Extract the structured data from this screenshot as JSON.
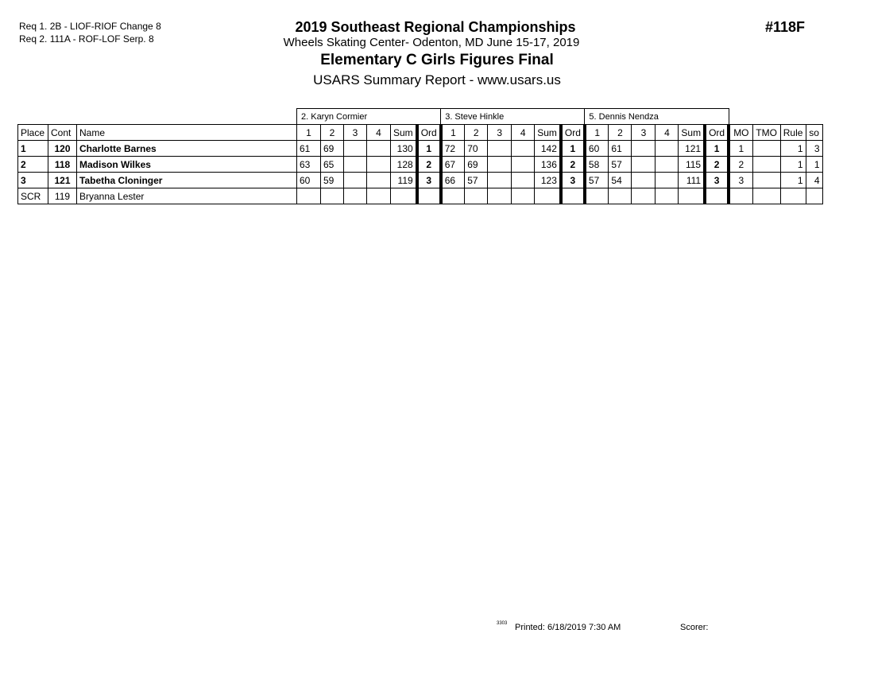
{
  "requirements": [
    "Req  1.  2B - LIOF-RIOF Change 8",
    "Req  2.  111A - ROF-LOF Serp. 8"
  ],
  "event_number": "#118F",
  "title": "2019 Southeast Regional Championships",
  "venue": "Wheels Skating Center- Odenton, MD  June 15-17, 2019",
  "event_name": "Elementary C Girls Figures Final",
  "report": "USARS Summary Report - www.usars.us",
  "judges": [
    "2.  Karyn Cormier",
    "3.  Steve Hinkle",
    "5.  Dennis Nendza"
  ],
  "columns": {
    "place": "Place",
    "cont": "Cont",
    "name": "Name",
    "judge_cols": [
      "1",
      "2",
      "3",
      "4",
      "Sum",
      "Ord"
    ],
    "mo": "MO",
    "tmo": "TMO",
    "rule": "Rule",
    "so": "so"
  },
  "rows": [
    {
      "place": "1",
      "cont": "120",
      "name": "Charlotte Barnes",
      "bold": true,
      "judges": [
        [
          "61",
          "69",
          "",
          "",
          "130",
          "1"
        ],
        [
          "72",
          "70",
          "",
          "",
          "142",
          "1"
        ],
        [
          "60",
          "61",
          "",
          "",
          "121",
          "1"
        ]
      ],
      "mo": "1",
      "tmo": "",
      "rule": "1",
      "so": "3"
    },
    {
      "place": "2",
      "cont": "118",
      "name": "Madison Wilkes",
      "bold": true,
      "judges": [
        [
          "63",
          "65",
          "",
          "",
          "128",
          "2"
        ],
        [
          "67",
          "69",
          "",
          "",
          "136",
          "2"
        ],
        [
          "58",
          "57",
          "",
          "",
          "115",
          "2"
        ]
      ],
      "mo": "2",
      "tmo": "",
      "rule": "1",
      "so": "1"
    },
    {
      "place": "3",
      "cont": "121",
      "name": "Tabetha Cloninger",
      "bold": true,
      "judges": [
        [
          "60",
          "59",
          "",
          "",
          "119",
          "3"
        ],
        [
          "66",
          "57",
          "",
          "",
          "123",
          "3"
        ],
        [
          "57",
          "54",
          "",
          "",
          "111",
          "3"
        ]
      ],
      "mo": "3",
      "tmo": "",
      "rule": "1",
      "so": "4"
    },
    {
      "place": "SCR",
      "cont": "119",
      "name": "Bryanna Lester",
      "bold": false,
      "judges": [
        [
          "",
          "",
          "",
          "",
          "",
          ""
        ],
        [
          "",
          "",
          "",
          "",
          "",
          ""
        ],
        [
          "",
          "",
          "",
          "",
          "",
          ""
        ]
      ],
      "mo": "",
      "tmo": "",
      "rule": "",
      "so": ""
    }
  ],
  "footer": {
    "code": "3303",
    "printed": "Printed:  6/18/2019  7:30 AM",
    "scorer": "Scorer:"
  }
}
